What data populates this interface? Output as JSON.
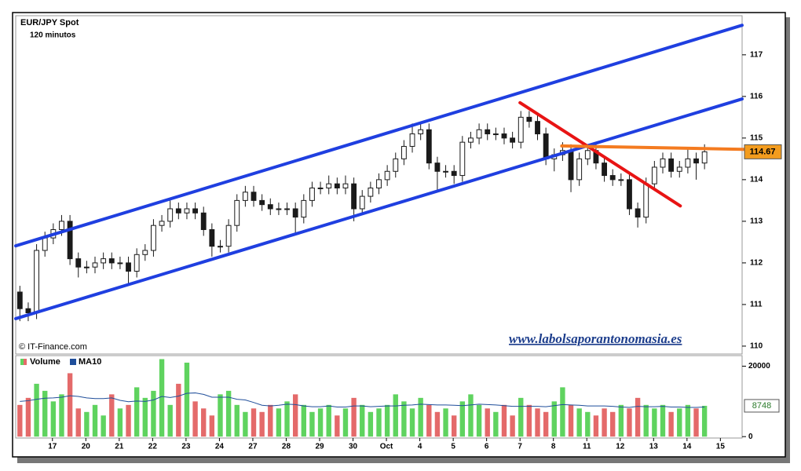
{
  "chart_data": {
    "type": "candlestick",
    "title": "EUR/JPY Spot",
    "subtitle": "120 minutos",
    "source": "© IT-Finance.com",
    "watermark": "www.labolsaporantonomasia.es",
    "xlim": [
      0,
      87
    ],
    "xticks": [
      {
        "value": 4.4,
        "label": "17"
      },
      {
        "value": 8.4,
        "label": "20"
      },
      {
        "value": 12.4,
        "label": "21"
      },
      {
        "value": 16.4,
        "label": "22"
      },
      {
        "value": 20.4,
        "label": "23"
      },
      {
        "value": 24.4,
        "label": "24"
      },
      {
        "value": 28.4,
        "label": "27"
      },
      {
        "value": 32.4,
        "label": "28"
      },
      {
        "value": 36.4,
        "label": "29"
      },
      {
        "value": 40.4,
        "label": "30"
      },
      {
        "value": 44.4,
        "label": "Oct"
      },
      {
        "value": 48.4,
        "label": "4"
      },
      {
        "value": 52.4,
        "label": "5"
      },
      {
        "value": 56.4,
        "label": "6"
      },
      {
        "value": 60.4,
        "label": "7"
      },
      {
        "value": 64.4,
        "label": "8"
      },
      {
        "value": 68.4,
        "label": "11"
      },
      {
        "value": 72.4,
        "label": "12"
      },
      {
        "value": 76.4,
        "label": "13"
      },
      {
        "value": 80.4,
        "label": "14"
      },
      {
        "value": 84.4,
        "label": "15"
      }
    ],
    "ylim": [
      109.81,
      117.94
    ],
    "yticks": [
      110,
      111,
      112,
      113,
      114,
      115,
      116,
      117
    ],
    "candle_color": "#1a1a1a",
    "open": [
      111.3,
      110.9,
      110.8,
      112.3,
      112.6,
      112.8,
      113.0,
      112.1,
      111.9,
      111.9,
      112.0,
      112.1,
      112.0,
      112.0,
      111.8,
      112.2,
      112.3,
      112.9,
      113.0,
      113.3,
      113.2,
      113.3,
      113.2,
      112.8,
      112.4,
      112.4,
      112.9,
      113.5,
      113.7,
      113.5,
      113.4,
      113.3,
      113.3,
      113.3,
      113.1,
      113.5,
      113.8,
      113.8,
      113.9,
      113.8,
      113.9,
      113.3,
      113.6,
      113.8,
      114.0,
      114.2,
      114.5,
      114.8,
      115.1,
      115.2,
      114.4,
      114.2,
      114.2,
      114.1,
      114.9,
      115.0,
      115.2,
      115.1,
      115.1,
      115.0,
      114.9,
      115.5,
      115.4,
      115.1,
      114.5,
      114.6,
      114.7,
      114.0,
      114.5,
      114.7,
      114.4,
      114.1,
      114.0,
      114.0,
      113.3,
      113.1,
      113.9,
      114.3,
      114.5,
      114.2,
      114.3,
      114.5,
      114.4
    ],
    "high": [
      111.45,
      111.05,
      112.45,
      112.75,
      112.95,
      113.15,
      113.15,
      112.25,
      112.05,
      112.15,
      112.25,
      112.25,
      112.15,
      112.15,
      112.35,
      112.45,
      113.05,
      113.15,
      113.5,
      113.45,
      113.45,
      113.45,
      113.35,
      112.95,
      112.55,
      113.05,
      113.65,
      113.85,
      113.85,
      113.65,
      113.55,
      113.45,
      113.45,
      113.45,
      113.65,
      113.95,
      113.95,
      114.1,
      114.05,
      114.1,
      114.05,
      113.75,
      113.95,
      114.15,
      114.35,
      114.65,
      114.95,
      115.35,
      115.35,
      115.35,
      114.55,
      114.35,
      114.35,
      115.05,
      115.15,
      115.35,
      115.35,
      115.25,
      115.25,
      115.15,
      115.65,
      115.65,
      115.55,
      115.25,
      114.75,
      114.9,
      114.85,
      114.65,
      114.85,
      114.85,
      114.55,
      114.25,
      114.15,
      114.15,
      113.45,
      114.05,
      114.45,
      114.65,
      114.65,
      114.45,
      114.75,
      114.65,
      114.85
    ],
    "low": [
      110.6,
      110.6,
      110.65,
      112.15,
      112.45,
      112.65,
      111.95,
      111.65,
      111.75,
      111.75,
      111.85,
      111.85,
      111.85,
      111.5,
      111.65,
      112.05,
      112.15,
      112.75,
      112.85,
      113.05,
      113.05,
      113.05,
      112.65,
      112.15,
      112.25,
      112.25,
      112.75,
      113.35,
      113.35,
      113.25,
      113.15,
      113.15,
      113.15,
      112.7,
      112.95,
      113.35,
      113.65,
      113.65,
      113.65,
      113.65,
      113.0,
      113.15,
      113.45,
      113.65,
      113.85,
      114.05,
      114.35,
      114.65,
      114.95,
      114.25,
      113.75,
      114.05,
      113.9,
      113.95,
      114.75,
      114.85,
      114.95,
      114.95,
      114.85,
      114.75,
      114.75,
      115.25,
      114.95,
      114.35,
      114.2,
      114.45,
      113.7,
      113.85,
      114.35,
      114.25,
      113.95,
      113.85,
      113.85,
      113.15,
      112.85,
      112.95,
      113.75,
      114.15,
      114.05,
      114.05,
      114.15,
      114.0,
      114.25
    ],
    "close": [
      110.9,
      110.8,
      112.3,
      112.6,
      112.8,
      113.0,
      112.1,
      111.9,
      111.9,
      112.0,
      112.1,
      112.0,
      112.0,
      111.8,
      112.2,
      112.3,
      112.9,
      113.0,
      113.3,
      113.2,
      113.3,
      113.2,
      112.8,
      112.4,
      112.4,
      112.9,
      113.5,
      113.7,
      113.5,
      113.4,
      113.3,
      113.3,
      113.3,
      113.1,
      113.5,
      113.8,
      113.8,
      113.9,
      113.8,
      113.9,
      113.3,
      113.6,
      113.8,
      114.0,
      114.2,
      114.5,
      114.8,
      115.1,
      115.2,
      114.4,
      114.2,
      114.2,
      114.1,
      114.9,
      115.0,
      115.2,
      115.1,
      115.1,
      115.0,
      114.9,
      115.5,
      115.4,
      115.1,
      114.5,
      114.6,
      114.7,
      114.0,
      114.5,
      114.7,
      114.4,
      114.1,
      114.0,
      114.0,
      113.3,
      113.1,
      113.9,
      114.3,
      114.5,
      114.2,
      114.3,
      114.5,
      114.4,
      114.67
    ],
    "price_tag_color": "#f39c1e",
    "trendlines": [
      {
        "color": "#1f3fe0",
        "x": [
          0,
          87
        ],
        "y": [
          112.41,
          117.71
        ]
      },
      {
        "color": "#1f3fe0",
        "x": [
          0,
          87
        ],
        "y": [
          110.66,
          115.94
        ]
      },
      {
        "color": "#e81414",
        "x": [
          60.4,
          79.6
        ],
        "y": [
          115.85,
          113.37
        ]
      },
      {
        "color": "#f47b20",
        "x": [
          65.4,
          89.5
        ],
        "y": [
          114.81,
          114.72
        ]
      }
    ],
    "volume": {
      "ylim": [
        -400,
        23000
      ],
      "yticks": [
        0,
        20000
      ],
      "up_color": "#5fd35f",
      "down_color": "#e46a6a",
      "series": [
        {
          "name": "Volume",
          "values": [
            9000,
            11000,
            15000,
            13000,
            10000,
            12000,
            18000,
            8000,
            7000,
            9000,
            6000,
            12000,
            8000,
            9000,
            14000,
            11000,
            13000,
            22000,
            9000,
            15000,
            21000,
            10000,
            8000,
            6000,
            12000,
            13000,
            9000,
            7000,
            8000,
            7000,
            9000,
            8000,
            10000,
            12000,
            9000,
            7000,
            8000,
            9000,
            6000,
            8000,
            11000,
            9000,
            7000,
            8000,
            9000,
            12000,
            10000,
            8000,
            11000,
            9000,
            7000,
            8000,
            6000,
            10000,
            12000,
            9000,
            8000,
            7000,
            9000,
            6000,
            11000,
            9000,
            8000,
            7000,
            10000,
            14000,
            9000,
            8000,
            7000,
            6000,
            8000,
            7000,
            9000,
            8000,
            11000,
            9000,
            8000,
            9000,
            7000,
            8000,
            9000,
            8000,
            8748
          ]
        },
        {
          "name": "MA10",
          "color": "#1f4e9a",
          "values": [
            10000,
            10200,
            10600,
            10900,
            11000,
            11200,
            11600,
            11400,
            11000,
            10800,
            10800,
            11000,
            10300,
            9900,
            10100,
            10000,
            10400,
            11400,
            11100,
            11500,
            12300,
            12400,
            12000,
            11200,
            11200,
            11200,
            10600,
            10400,
            9700,
            8900,
            8700,
            8900,
            9200,
            9100,
            8700,
            8500,
            8500,
            8700,
            8400,
            8400,
            8700,
            8700,
            8500,
            8600,
            8700,
            8700,
            8900,
            9000,
            9200,
            9100,
            9000,
            9000,
            8900,
            8800,
            9000,
            9200,
            9100,
            9000,
            8800,
            8600,
            8600,
            8600,
            8600,
            8500,
            8800,
            9100,
            9000,
            8900,
            8700,
            8700,
            8700,
            8600,
            8400,
            8300,
            8600,
            8500,
            8500,
            8600,
            8400,
            8400,
            8300,
            8300,
            8400
          ]
        }
      ]
    }
  }
}
